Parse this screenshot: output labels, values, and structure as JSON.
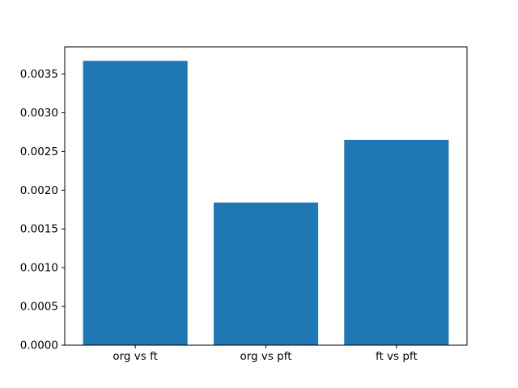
{
  "chart_data": {
    "type": "bar",
    "title": "",
    "xlabel": "",
    "ylabel": "",
    "categories": [
      "org vs ft",
      "org vs pft",
      "ft vs pft"
    ],
    "values": [
      0.00367,
      0.00184,
      0.00265
    ],
    "bar_color": "#1f77b4",
    "bar_width": 0.8,
    "xlim": [
      -0.54,
      2.54
    ],
    "ylim": [
      0,
      0.00385
    ],
    "yticks": [
      0.0,
      0.0005,
      0.001,
      0.0015,
      0.002,
      0.0025,
      0.003,
      0.0035
    ],
    "ytick_labels": [
      "0.0000",
      "0.0005",
      "0.0010",
      "0.0015",
      "0.0020",
      "0.0025",
      "0.0030",
      "0.0035"
    ],
    "grid": false,
    "legend": null,
    "spine_color": "#000000",
    "text_color": "#000000",
    "background_color": "#ffffff"
  }
}
